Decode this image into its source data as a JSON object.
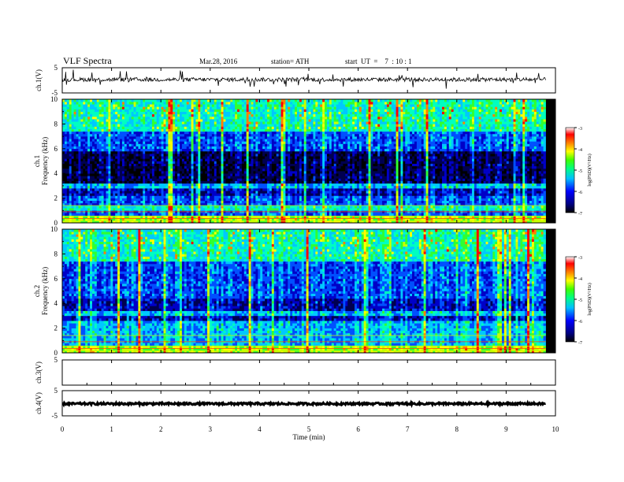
{
  "header": {
    "title": "VLF  Spectra",
    "date": "Mar.28, 2016",
    "station": "station= ATH",
    "start_ut": "start  UT  =    7  : 10 : 1"
  },
  "chart_data": {
    "type": "heatmap",
    "x_axis": {
      "label": "Time  (min)",
      "range": [
        0,
        10
      ],
      "ticks": [
        "0",
        "1",
        "2",
        "3",
        "4",
        "5",
        "6",
        "7",
        "8",
        "9",
        "10"
      ]
    },
    "panels": [
      {
        "id": "ch1-waveform",
        "type": "line",
        "ylabel": "ch.1(V)",
        "ylim": [
          -5,
          5
        ],
        "yticks": [
          "5",
          "-5"
        ],
        "baseline": 0.3
      },
      {
        "id": "ch1-spectrogram",
        "type": "heatmap",
        "ylabel_top": "ch.1",
        "ylabel": "Frequency  (kHz)",
        "ylim": [
          0,
          10
        ],
        "yticks": [
          "0",
          "2",
          "4",
          "6",
          "8",
          "10"
        ],
        "colorbar": {
          "label": "log(PSD)(V²/Hz)",
          "range": [
            -7,
            -3
          ],
          "ticks": [
            "-3",
            "-4",
            "-5",
            "-6",
            "-7"
          ]
        }
      },
      {
        "id": "ch2-spectrogram",
        "type": "heatmap",
        "ylabel_top": "ch.2",
        "ylabel": "Frequency  (kHz)",
        "ylim": [
          0,
          10
        ],
        "yticks": [
          "0",
          "2",
          "4",
          "6",
          "8",
          "10"
        ],
        "colorbar": {
          "label": "log(PSD)(V²/Hz)",
          "range": [
            -7,
            -3
          ],
          "ticks": [
            "-3",
            "-4",
            "-5",
            "-6",
            "-7"
          ]
        }
      },
      {
        "id": "ch3-waveform",
        "type": "line",
        "ylabel": "ch.3(V)",
        "ylim": [
          -5,
          5
        ],
        "yticks": [
          "5"
        ],
        "baseline": -5
      },
      {
        "id": "ch4-waveform",
        "type": "line",
        "ylabel": "ch.4(V)",
        "ylim": [
          -5,
          5
        ],
        "yticks": [
          "5",
          "-5"
        ],
        "baseline": -0.2
      }
    ],
    "colormap": [
      "#000000",
      "#000050",
      "#0000c8",
      "#0050ff",
      "#00c8ff",
      "#00ffc0",
      "#30ff30",
      "#c8ff00",
      "#ffff00",
      "#ff8000",
      "#ff0000",
      "#ffffff"
    ],
    "data_end_min": 9.8,
    "grid": false
  }
}
